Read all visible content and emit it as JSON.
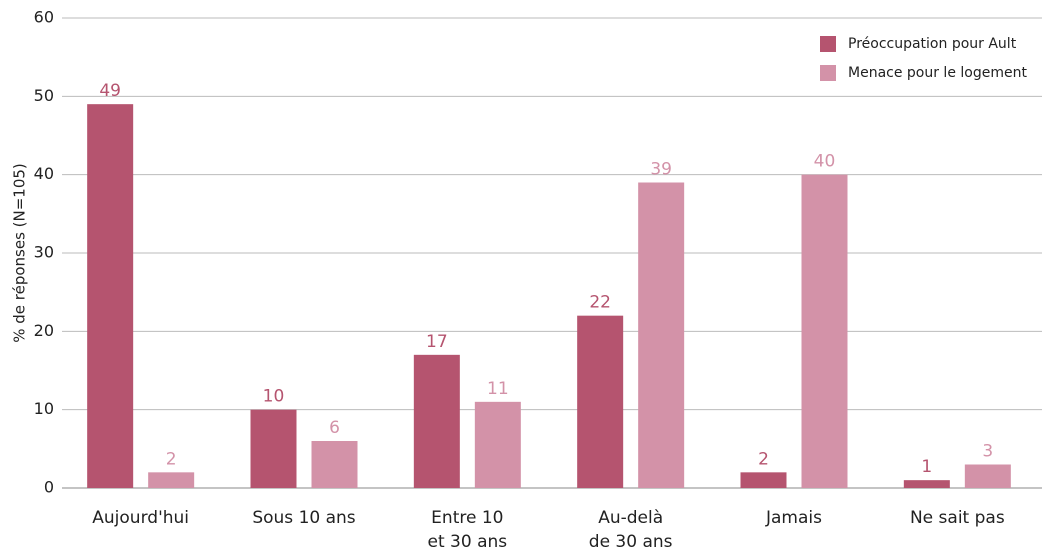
{
  "chart_data": {
    "type": "bar",
    "y_label": "% de réponses (N=105)",
    "categories": [
      "Aujourd'hui",
      "Sous 10 ans",
      "Entre 10\net 30 ans",
      "Au-delà\nde 30 ans",
      "Jamais",
      "Ne sait pas"
    ],
    "series": [
      {
        "name": "Préoccupation pour Ault",
        "color": "#b5546f",
        "values": [
          49,
          10,
          17,
          22,
          2,
          1
        ]
      },
      {
        "name": "Menace pour le logement",
        "color": "#d392a8",
        "values": [
          2,
          6,
          11,
          39,
          40,
          3
        ]
      }
    ],
    "ylim": [
      0,
      60
    ],
    "yticks": [
      0,
      10,
      20,
      30,
      40,
      50,
      60
    ],
    "grid": true,
    "legend": "top-right"
  }
}
